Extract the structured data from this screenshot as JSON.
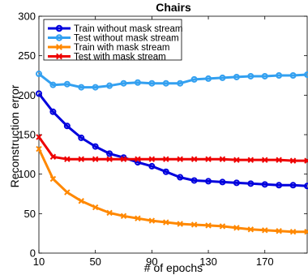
{
  "chart_data": {
    "type": "line",
    "title": "Chairs",
    "xlabel": "# of epochs",
    "ylabel": "Reconstruction error",
    "xlim": [
      10,
      200
    ],
    "ylim": [
      0,
      300
    ],
    "xticks": [
      10,
      50,
      90,
      130,
      170
    ],
    "yticks": [
      0,
      50,
      100,
      150,
      200,
      250,
      300
    ],
    "grid": false,
    "legend_position": "top-left",
    "x": [
      10,
      20,
      30,
      40,
      50,
      60,
      70,
      80,
      90,
      100,
      110,
      120,
      130,
      140,
      150,
      160,
      170,
      180,
      190,
      200
    ],
    "series": [
      {
        "name": "Train without mask stream",
        "color": "#0000dd",
        "marker": "circle",
        "values": [
          202,
          179,
          161,
          146,
          135,
          126,
          121,
          115,
          110,
          103,
          96,
          92,
          91,
          90,
          89,
          88,
          87,
          86,
          86,
          85
        ]
      },
      {
        "name": "Test without mask stream",
        "color": "#33a0f0",
        "marker": "circle",
        "values": [
          227,
          213,
          214,
          210,
          210,
          212,
          215,
          216,
          215,
          215,
          215,
          220,
          221,
          222,
          223,
          224,
          224,
          225,
          225,
          226
        ]
      },
      {
        "name": "Train with mask stream",
        "color": "#ff8800",
        "marker": "x",
        "values": [
          132,
          94,
          77,
          66,
          58,
          51,
          47,
          44,
          41,
          39,
          37,
          36,
          35,
          34,
          32,
          30,
          29,
          28,
          27,
          27
        ]
      },
      {
        "name": "Test with mask stream",
        "color": "#ee0000",
        "marker": "x",
        "values": [
          147,
          122,
          119,
          119,
          119,
          119,
          119,
          119,
          119,
          119,
          119,
          119,
          119,
          119,
          118,
          118,
          118,
          118,
          117,
          117
        ]
      }
    ]
  }
}
